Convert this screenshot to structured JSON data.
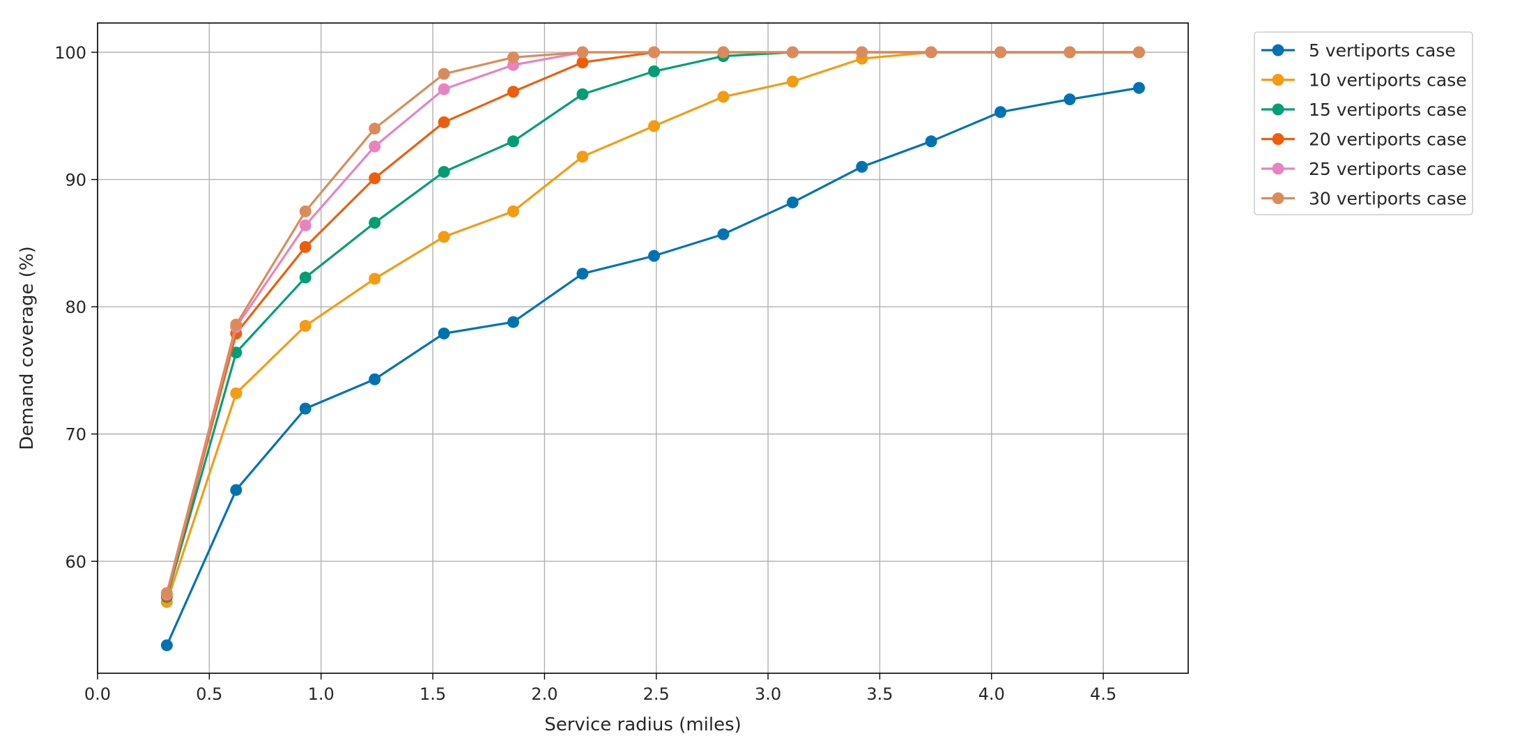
{
  "chart_data": {
    "type": "line",
    "title": "",
    "xlabel": "Service radius (miles)",
    "ylabel": "Demand coverage (%)",
    "xlim": [
      0.0,
      4.88
    ],
    "ylim": [
      51.2,
      102.3
    ],
    "x_ticks": [
      0.0,
      0.5,
      1.0,
      1.5,
      2.0,
      2.5,
      3.0,
      3.5,
      4.0,
      4.5
    ],
    "x_tick_labels": [
      "0.0",
      "0.5",
      "1.0",
      "1.5",
      "2.0",
      "2.5",
      "3.0",
      "3.5",
      "4.0",
      "4.5"
    ],
    "y_ticks": [
      60,
      70,
      80,
      90,
      100
    ],
    "y_tick_labels": [
      "60",
      "70",
      "80",
      "90",
      "100"
    ],
    "grid": true,
    "legend_position": "outside-top-right",
    "x": [
      0.31,
      0.62,
      0.93,
      1.24,
      1.55,
      1.86,
      2.17,
      2.49,
      2.8,
      3.11,
      3.42,
      3.73,
      4.04,
      4.35,
      4.66
    ],
    "series": [
      {
        "name": "5 vertiports case",
        "color": "#0072B2",
        "values": [
          53.4,
          65.6,
          72.0,
          74.3,
          77.9,
          78.8,
          82.6,
          84.0,
          85.7,
          88.2,
          91.0,
          93.0,
          95.3,
          96.3,
          97.2
        ]
      },
      {
        "name": "10 vertiports case",
        "color": "#F39C12",
        "values": [
          56.8,
          73.2,
          78.5,
          82.2,
          85.5,
          87.5,
          91.8,
          94.2,
          96.5,
          97.7,
          99.5,
          100.0,
          100.0,
          100.0,
          100.0
        ]
      },
      {
        "name": "15 vertiports case",
        "color": "#009E73",
        "values": [
          57.2,
          76.4,
          82.3,
          86.6,
          90.6,
          93.0,
          96.7,
          98.5,
          99.7,
          100.0,
          100.0,
          100.0,
          100.0,
          100.0,
          100.0
        ]
      },
      {
        "name": "20 vertiports case",
        "color": "#EE5E0A",
        "values": [
          57.3,
          77.9,
          84.7,
          90.1,
          94.5,
          96.9,
          99.2,
          100.0,
          100.0,
          100.0,
          100.0,
          100.0,
          100.0,
          100.0,
          100.0
        ]
      },
      {
        "name": "25 vertiports case",
        "color": "#E883C0",
        "values": [
          57.4,
          78.4,
          86.4,
          92.6,
          97.1,
          99.0,
          100.0,
          100.0,
          100.0,
          100.0,
          100.0,
          100.0,
          100.0,
          100.0,
          100.0
        ]
      },
      {
        "name": "30 vertiports case",
        "color": "#DB8B5B",
        "values": [
          57.5,
          78.6,
          87.5,
          94.0,
          98.3,
          99.6,
          100.0,
          100.0,
          100.0,
          100.0,
          100.0,
          100.0,
          100.0,
          100.0,
          100.0
        ]
      }
    ]
  }
}
